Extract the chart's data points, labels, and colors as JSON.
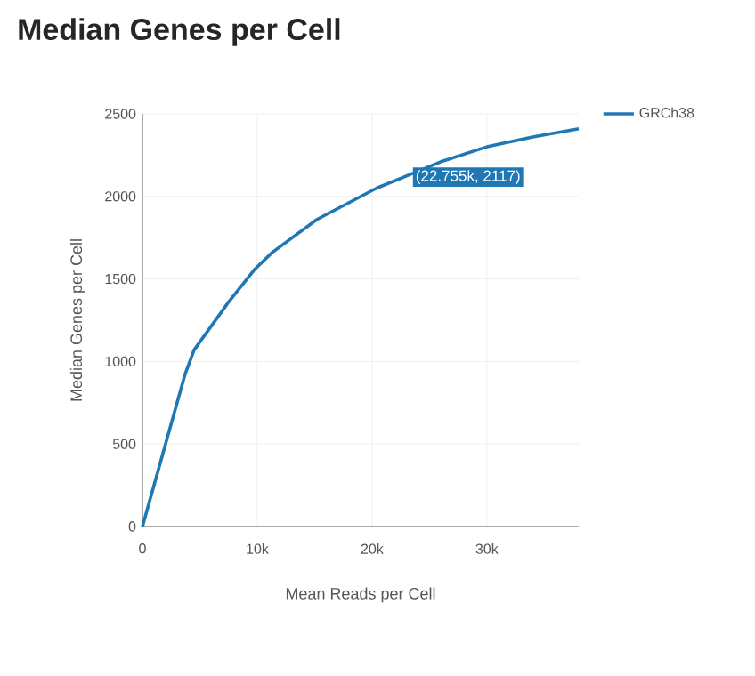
{
  "chart_data": {
    "type": "line",
    "title": "Median Genes per Cell",
    "xlabel": "Mean Reads per Cell",
    "ylabel": "Median Genes per Cell",
    "x": [
      0,
      3700,
      4500,
      7500,
      9800,
      11300,
      15200,
      20400,
      22755,
      26000,
      30000,
      34000,
      38000
    ],
    "series": [
      {
        "name": "GRCh38",
        "color": "#1f77b4",
        "values": [
          0,
          920,
          1070,
          1360,
          1560,
          1660,
          1860,
          2050,
          2117,
          2210,
          2300,
          2360,
          2410
        ]
      }
    ],
    "annotations": [
      {
        "text": "(22.755k, 2117)",
        "x": 22755,
        "y": 2117
      }
    ],
    "xlim": [
      0,
      38000
    ],
    "ylim": [
      0,
      2500
    ],
    "xticks": [
      0,
      {
        "value": 10000,
        "label": "10k"
      },
      {
        "value": 20000,
        "label": "20k"
      },
      {
        "value": 30000,
        "label": "30k"
      }
    ],
    "yticks": [
      0,
      500,
      1000,
      1500,
      2000,
      2500
    ],
    "grid": true,
    "legend": "top right",
    "marker": "none",
    "line_style": "solid"
  }
}
